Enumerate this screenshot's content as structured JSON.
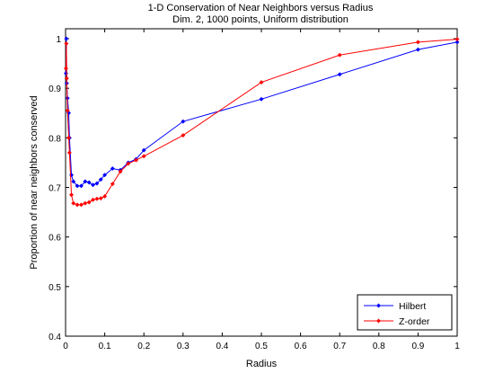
{
  "chart_data": {
    "type": "line",
    "title": "1-D Conservation of Near Neighbors versus Radius",
    "subtitle": "Dim. 2, 1000 points, Uniform distribution",
    "xlabel": "Radius",
    "ylabel": "Proportion of near neighbors conserved",
    "xlim": [
      0,
      1
    ],
    "ylim": [
      0.4,
      1.02
    ],
    "x_ticks": [
      0,
      0.1,
      0.2,
      0.3,
      0.4,
      0.5,
      0.6,
      0.7,
      0.8,
      0.9,
      1
    ],
    "x_tick_labels": [
      "0",
      "0.1",
      "0.2",
      "0.3",
      "0.4",
      "0.5",
      "0.6",
      "0.7",
      "0.8",
      "0.9",
      "1"
    ],
    "y_ticks": [
      0.4,
      0.5,
      0.6,
      0.7,
      0.8,
      0.9,
      1
    ],
    "y_tick_labels": [
      "0.4",
      "0.5",
      "0.6",
      "0.7",
      "0.8",
      "0.9",
      "1"
    ],
    "grid": false,
    "legend_position": "bottom-right",
    "series": [
      {
        "name": "Hilbert",
        "color": "#0000ff",
        "x": [
          0.001,
          0.002,
          0.003,
          0.005,
          0.008,
          0.01,
          0.015,
          0.02,
          0.03,
          0.04,
          0.05,
          0.06,
          0.07,
          0.08,
          0.09,
          0.1,
          0.12,
          0.14,
          0.16,
          0.18,
          0.2,
          0.3,
          0.5,
          0.7,
          0.9,
          1.0
        ],
        "y": [
          0.93,
          1.0,
          0.91,
          0.88,
          0.85,
          0.8,
          0.725,
          0.712,
          0.703,
          0.703,
          0.712,
          0.71,
          0.705,
          0.708,
          0.716,
          0.725,
          0.738,
          0.735,
          0.75,
          0.757,
          0.775,
          0.833,
          0.878,
          0.928,
          0.978,
          0.993
        ]
      },
      {
        "name": "Z-order",
        "color": "#ff0000",
        "x": [
          0.001,
          0.002,
          0.003,
          0.005,
          0.008,
          0.01,
          0.015,
          0.02,
          0.03,
          0.04,
          0.05,
          0.06,
          0.07,
          0.08,
          0.09,
          0.1,
          0.12,
          0.14,
          0.16,
          0.18,
          0.2,
          0.3,
          0.5,
          0.7,
          0.9,
          1.0
        ],
        "y": [
          0.94,
          0.99,
          0.92,
          0.855,
          0.8,
          0.77,
          0.685,
          0.668,
          0.665,
          0.665,
          0.668,
          0.67,
          0.675,
          0.677,
          0.678,
          0.682,
          0.707,
          0.732,
          0.748,
          0.755,
          0.763,
          0.805,
          0.912,
          0.967,
          0.993,
          0.999
        ]
      }
    ]
  }
}
